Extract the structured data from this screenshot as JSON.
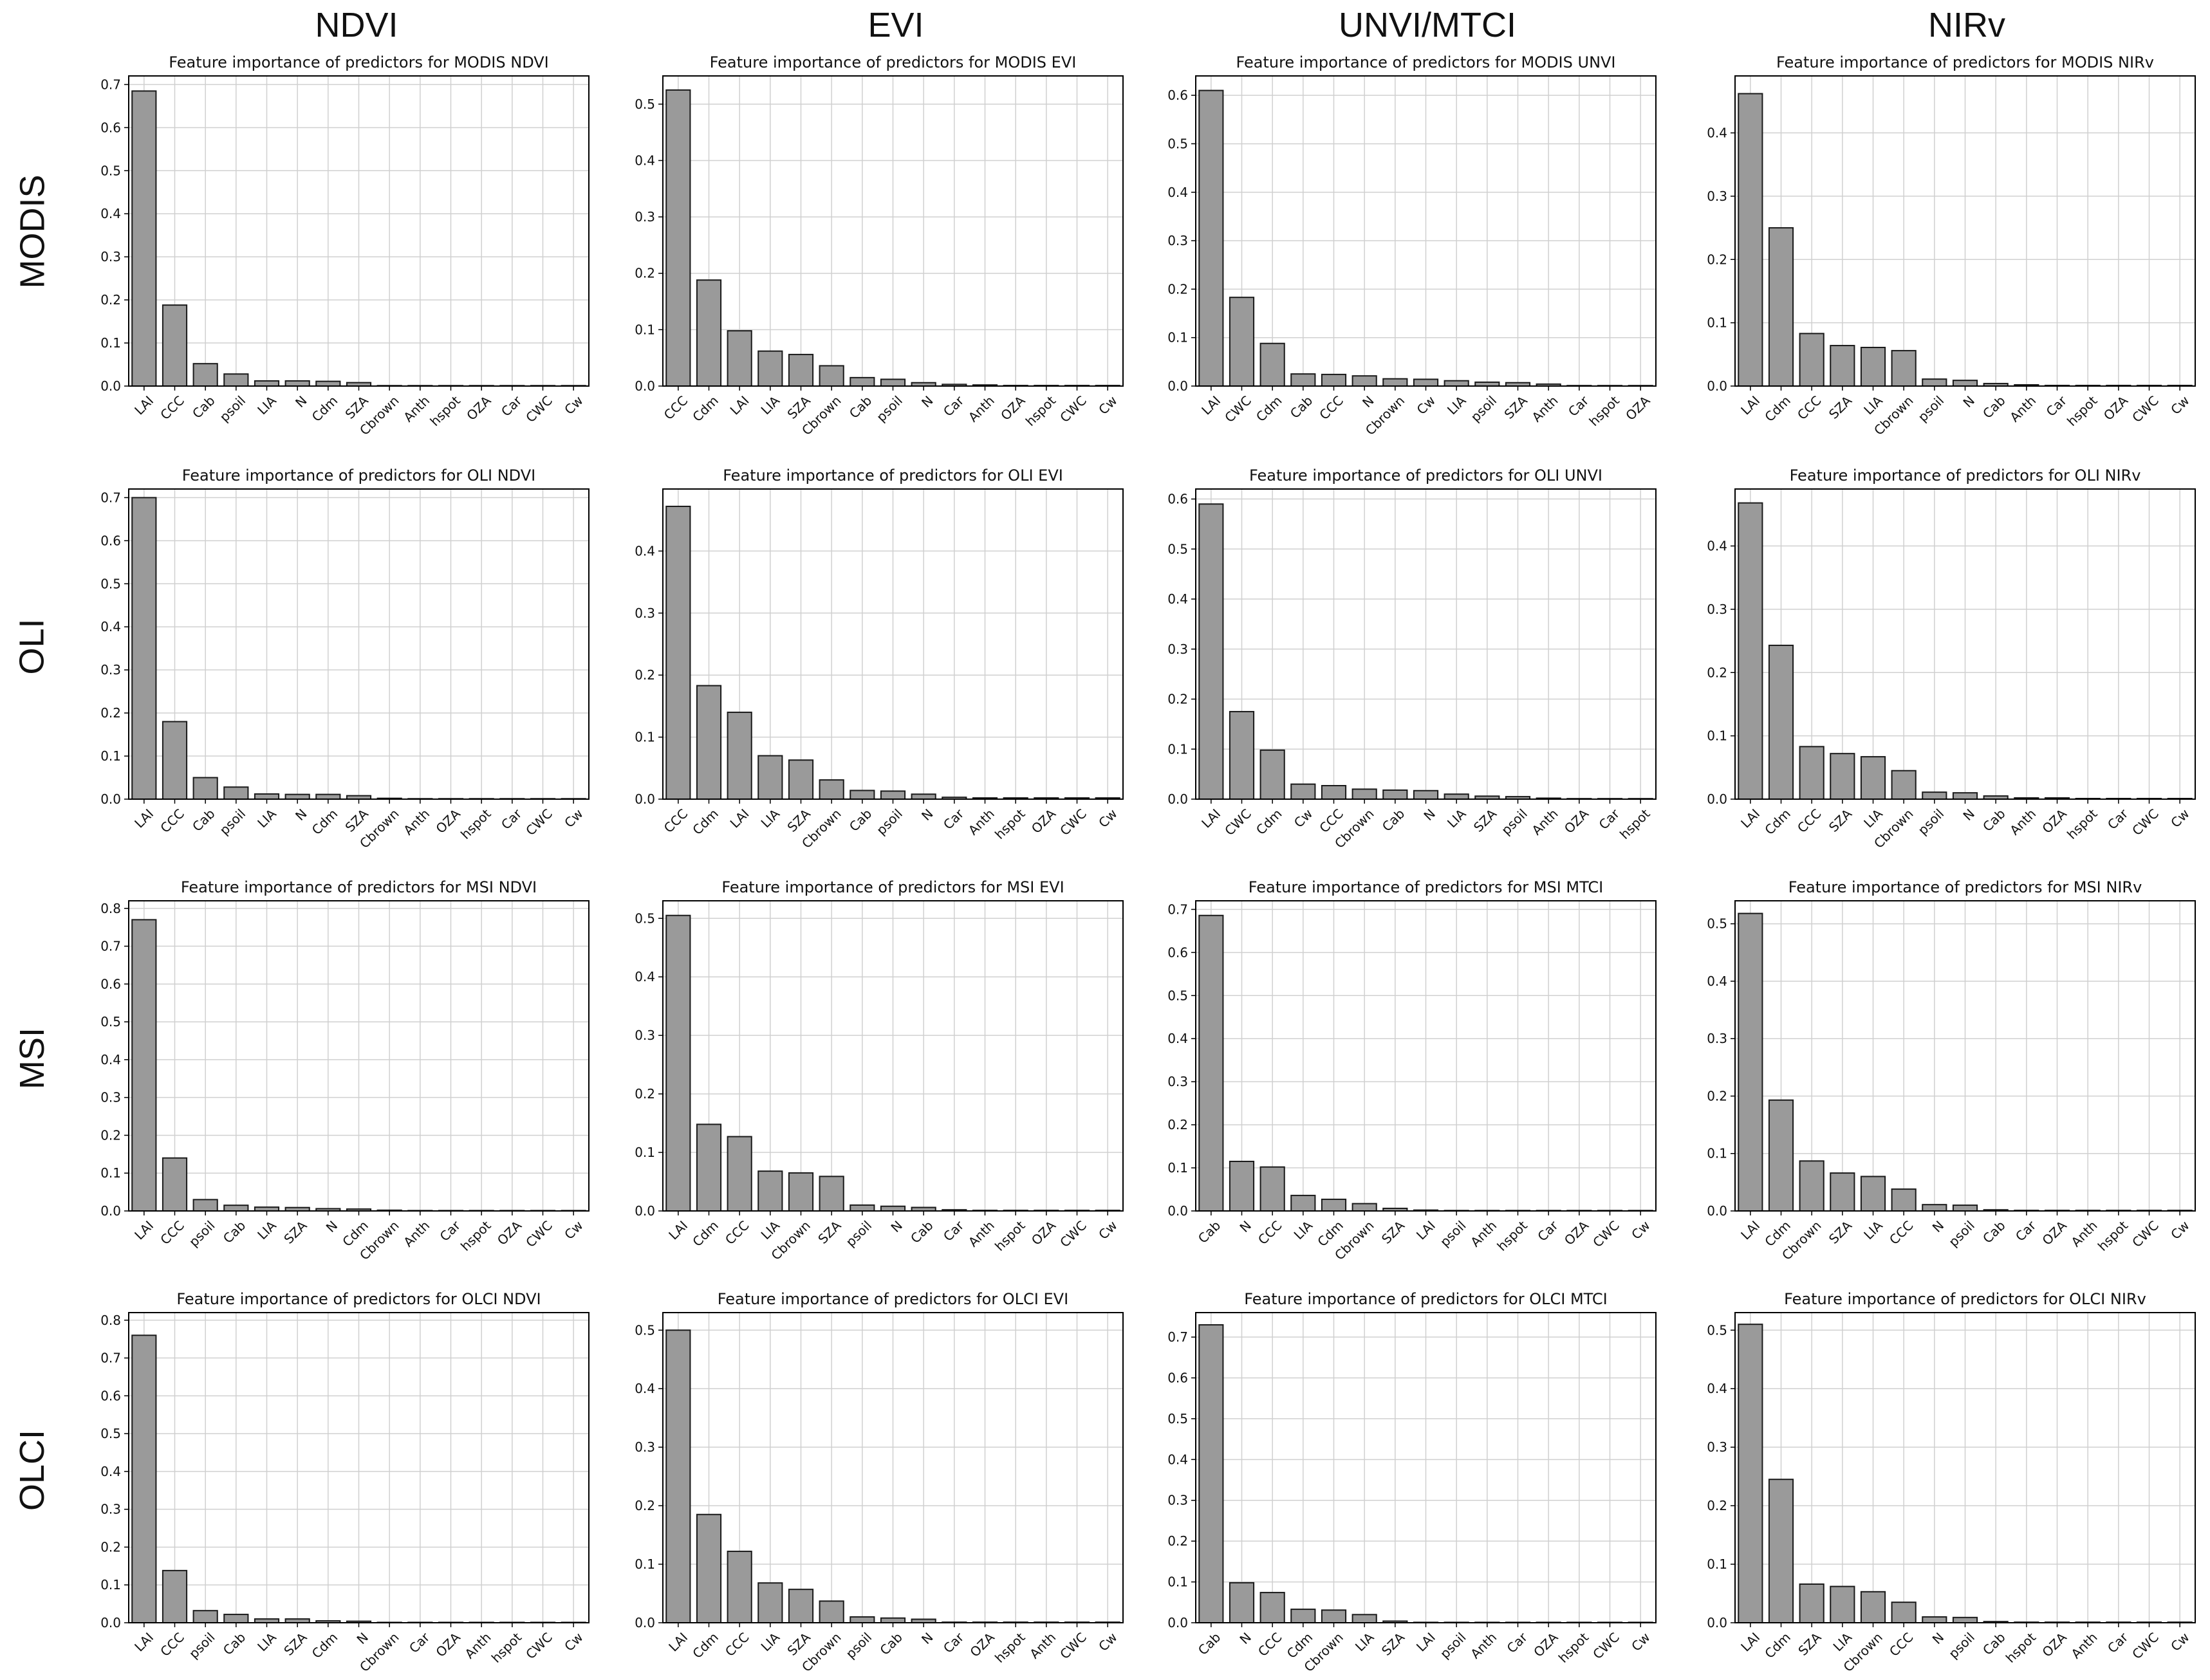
{
  "column_headers": [
    "NDVI",
    "EVI",
    "UNVI/MTCI",
    "NIRv"
  ],
  "row_headers": [
    "MODIS",
    "OLI",
    "MSI",
    "OLCI"
  ],
  "colors": {
    "bar_fill": "#9a9a9a",
    "bar_stroke": "#1a1a1a",
    "grid": "#d0d0d0",
    "axis": "#000000",
    "text": "#111111"
  },
  "chart_data": [
    {
      "type": "bar",
      "title": "Feature importance of predictors for MODIS NDVI",
      "xlabel": "",
      "ylabel": "",
      "ylim": [
        0,
        0.72
      ],
      "yticks": [
        0.0,
        0.1,
        0.2,
        0.3,
        0.4,
        0.5,
        0.6,
        0.7
      ],
      "grid": true,
      "categories": [
        "LAI",
        "CCC",
        "Cab",
        "psoil",
        "LIA",
        "N",
        "Cdm",
        "SZA",
        "Cbrown",
        "Anth",
        "hspot",
        "OZA",
        "Car",
        "CWC",
        "Cw"
      ],
      "values": [
        0.685,
        0.188,
        0.052,
        0.028,
        0.012,
        0.012,
        0.011,
        0.008,
        0.001,
        0.001,
        0.001,
        0.001,
        0.001,
        0.001,
        0.001
      ]
    },
    {
      "type": "bar",
      "title": "Feature importance of predictors for MODIS EVI",
      "xlabel": "",
      "ylabel": "",
      "ylim": [
        0,
        0.55
      ],
      "yticks": [
        0.0,
        0.1,
        0.2,
        0.3,
        0.4,
        0.5
      ],
      "grid": true,
      "categories": [
        "CCC",
        "Cdm",
        "LAI",
        "LIA",
        "SZA",
        "Cbrown",
        "Cab",
        "psoil",
        "N",
        "Car",
        "Anth",
        "OZA",
        "hspot",
        "CWC",
        "Cw"
      ],
      "values": [
        0.525,
        0.188,
        0.098,
        0.062,
        0.056,
        0.036,
        0.015,
        0.012,
        0.006,
        0.003,
        0.002,
        0.001,
        0.001,
        0.001,
        0.001
      ]
    },
    {
      "type": "bar",
      "title": "Feature importance of predictors for MODIS UNVI",
      "xlabel": "",
      "ylabel": "",
      "ylim": [
        0,
        0.64
      ],
      "yticks": [
        0.0,
        0.1,
        0.2,
        0.3,
        0.4,
        0.5,
        0.6
      ],
      "grid": true,
      "categories": [
        "LAI",
        "CWC",
        "Cdm",
        "Cab",
        "CCC",
        "N",
        "Cbrown",
        "Cw",
        "LIA",
        "psoil",
        "SZA",
        "Anth",
        "Car",
        "hspot",
        "OZA"
      ],
      "values": [
        0.61,
        0.183,
        0.088,
        0.025,
        0.024,
        0.021,
        0.015,
        0.014,
        0.011,
        0.008,
        0.007,
        0.004,
        0.001,
        0.001,
        0.001
      ]
    },
    {
      "type": "bar",
      "title": "Feature importance of predictors for MODIS NIRv",
      "xlabel": "",
      "ylabel": "",
      "ylim": [
        0,
        0.49
      ],
      "yticks": [
        0.0,
        0.1,
        0.2,
        0.3,
        0.4
      ],
      "grid": true,
      "categories": [
        "LAI",
        "Cdm",
        "CCC",
        "SZA",
        "LIA",
        "Cbrown",
        "psoil",
        "N",
        "Cab",
        "Anth",
        "Car",
        "hspot",
        "OZA",
        "CWC",
        "Cw"
      ],
      "values": [
        0.462,
        0.25,
        0.083,
        0.064,
        0.061,
        0.056,
        0.011,
        0.009,
        0.004,
        0.002,
        0.001,
        0.001,
        0.001,
        0.001,
        0.001
      ]
    },
    {
      "type": "bar",
      "title": "Feature importance of predictors for OLI NDVI",
      "xlabel": "",
      "ylabel": "",
      "ylim": [
        0,
        0.72
      ],
      "yticks": [
        0.0,
        0.1,
        0.2,
        0.3,
        0.4,
        0.5,
        0.6,
        0.7
      ],
      "grid": true,
      "categories": [
        "LAI",
        "CCC",
        "Cab",
        "psoil",
        "LIA",
        "N",
        "Cdm",
        "SZA",
        "Cbrown",
        "Anth",
        "OZA",
        "hspot",
        "Car",
        "CWC",
        "Cw"
      ],
      "values": [
        0.7,
        0.18,
        0.05,
        0.028,
        0.012,
        0.011,
        0.011,
        0.008,
        0.002,
        0.001,
        0.001,
        0.001,
        0.001,
        0.001,
        0.001
      ]
    },
    {
      "type": "bar",
      "title": "Feature importance of predictors for OLI EVI",
      "xlabel": "",
      "ylabel": "",
      "ylim": [
        0,
        0.5
      ],
      "yticks": [
        0.0,
        0.1,
        0.2,
        0.3,
        0.4
      ],
      "grid": true,
      "categories": [
        "CCC",
        "Cdm",
        "LAI",
        "LIA",
        "SZA",
        "Cbrown",
        "Cab",
        "psoil",
        "N",
        "Car",
        "Anth",
        "hspot",
        "OZA",
        "CWC",
        "Cw"
      ],
      "values": [
        0.472,
        0.183,
        0.14,
        0.07,
        0.063,
        0.031,
        0.014,
        0.013,
        0.008,
        0.003,
        0.002,
        0.002,
        0.002,
        0.002,
        0.002
      ]
    },
    {
      "type": "bar",
      "title": "Feature importance of predictors for OLI UNVI",
      "xlabel": "",
      "ylabel": "",
      "ylim": [
        0,
        0.62
      ],
      "yticks": [
        0.0,
        0.1,
        0.2,
        0.3,
        0.4,
        0.5,
        0.6
      ],
      "grid": true,
      "categories": [
        "LAI",
        "CWC",
        "Cdm",
        "Cw",
        "CCC",
        "Cbrown",
        "Cab",
        "N",
        "LIA",
        "SZA",
        "psoil",
        "Anth",
        "OZA",
        "Car",
        "hspot"
      ],
      "values": [
        0.59,
        0.175,
        0.098,
        0.03,
        0.027,
        0.02,
        0.018,
        0.017,
        0.01,
        0.006,
        0.005,
        0.002,
        0.001,
        0.001,
        0.001
      ]
    },
    {
      "type": "bar",
      "title": "Feature importance of predictors for OLI NIRv",
      "xlabel": "",
      "ylabel": "",
      "ylim": [
        0,
        0.49
      ],
      "yticks": [
        0.0,
        0.1,
        0.2,
        0.3,
        0.4
      ],
      "grid": true,
      "categories": [
        "LAI",
        "Cdm",
        "CCC",
        "SZA",
        "LIA",
        "Cbrown",
        "psoil",
        "N",
        "Cab",
        "Anth",
        "OZA",
        "hspot",
        "Car",
        "CWC",
        "Cw"
      ],
      "values": [
        0.468,
        0.243,
        0.083,
        0.072,
        0.067,
        0.045,
        0.011,
        0.01,
        0.005,
        0.002,
        0.002,
        0.001,
        0.001,
        0.001,
        0.001
      ]
    },
    {
      "type": "bar",
      "title": "Feature importance of predictors for MSI NDVI",
      "xlabel": "",
      "ylabel": "",
      "ylim": [
        0,
        0.82
      ],
      "yticks": [
        0.0,
        0.1,
        0.2,
        0.3,
        0.4,
        0.5,
        0.6,
        0.7,
        0.8
      ],
      "grid": true,
      "categories": [
        "LAI",
        "CCC",
        "psoil",
        "Cab",
        "LIA",
        "SZA",
        "N",
        "Cdm",
        "Cbrown",
        "Anth",
        "Car",
        "hspot",
        "OZA",
        "CWC",
        "Cw"
      ],
      "values": [
        0.77,
        0.14,
        0.03,
        0.015,
        0.01,
        0.009,
        0.006,
        0.005,
        0.002,
        0.001,
        0.001,
        0.001,
        0.001,
        0.001,
        0.001
      ]
    },
    {
      "type": "bar",
      "title": "Feature importance of predictors for MSI EVI",
      "xlabel": "",
      "ylabel": "",
      "ylim": [
        0,
        0.53
      ],
      "yticks": [
        0.0,
        0.1,
        0.2,
        0.3,
        0.4,
        0.5
      ],
      "grid": true,
      "categories": [
        "LAI",
        "Cdm",
        "CCC",
        "LIA",
        "Cbrown",
        "SZA",
        "psoil",
        "N",
        "Cab",
        "Car",
        "Anth",
        "hspot",
        "OZA",
        "CWC",
        "Cw"
      ],
      "values": [
        0.505,
        0.148,
        0.127,
        0.068,
        0.065,
        0.059,
        0.01,
        0.008,
        0.006,
        0.002,
        0.001,
        0.001,
        0.001,
        0.001,
        0.001
      ]
    },
    {
      "type": "bar",
      "title": "Feature importance of predictors for MSI MTCI",
      "xlabel": "",
      "ylabel": "",
      "ylim": [
        0,
        0.72
      ],
      "yticks": [
        0.0,
        0.1,
        0.2,
        0.3,
        0.4,
        0.5,
        0.6,
        0.7
      ],
      "grid": true,
      "categories": [
        "Cab",
        "N",
        "CCC",
        "LIA",
        "Cdm",
        "Cbrown",
        "SZA",
        "LAI",
        "psoil",
        "Anth",
        "hspot",
        "Car",
        "OZA",
        "CWC",
        "Cw"
      ],
      "values": [
        0.686,
        0.115,
        0.102,
        0.036,
        0.027,
        0.017,
        0.006,
        0.002,
        0.001,
        0.001,
        0.001,
        0.001,
        0.001,
        0.001,
        0.001
      ]
    },
    {
      "type": "bar",
      "title": "Feature importance of predictors for MSI NIRv",
      "xlabel": "",
      "ylabel": "",
      "ylim": [
        0,
        0.54
      ],
      "yticks": [
        0.0,
        0.1,
        0.2,
        0.3,
        0.4,
        0.5
      ],
      "grid": true,
      "categories": [
        "LAI",
        "Cdm",
        "Cbrown",
        "SZA",
        "LIA",
        "CCC",
        "N",
        "psoil",
        "Cab",
        "Car",
        "OZA",
        "Anth",
        "hspot",
        "CWC",
        "Cw"
      ],
      "values": [
        0.518,
        0.193,
        0.087,
        0.066,
        0.06,
        0.038,
        0.011,
        0.01,
        0.002,
        0.001,
        0.001,
        0.001,
        0.001,
        0.001,
        0.001
      ]
    },
    {
      "type": "bar",
      "title": "Feature importance of predictors for OLCI NDVI",
      "xlabel": "",
      "ylabel": "",
      "ylim": [
        0,
        0.82
      ],
      "yticks": [
        0.0,
        0.1,
        0.2,
        0.3,
        0.4,
        0.5,
        0.6,
        0.7,
        0.8
      ],
      "grid": true,
      "categories": [
        "LAI",
        "CCC",
        "psoil",
        "Cab",
        "LIA",
        "SZA",
        "Cdm",
        "N",
        "Cbrown",
        "Car",
        "OZA",
        "Anth",
        "hspot",
        "CWC",
        "Cw"
      ],
      "values": [
        0.76,
        0.138,
        0.032,
        0.022,
        0.01,
        0.01,
        0.005,
        0.004,
        0.001,
        0.001,
        0.001,
        0.001,
        0.001,
        0.001,
        0.001
      ]
    },
    {
      "type": "bar",
      "title": "Feature importance of predictors for OLCI EVI",
      "xlabel": "",
      "ylabel": "",
      "ylim": [
        0,
        0.53
      ],
      "yticks": [
        0.0,
        0.1,
        0.2,
        0.3,
        0.4,
        0.5
      ],
      "grid": true,
      "categories": [
        "LAI",
        "Cdm",
        "CCC",
        "LIA",
        "SZA",
        "Cbrown",
        "psoil",
        "Cab",
        "N",
        "Car",
        "OZA",
        "hspot",
        "Anth",
        "CWC",
        "Cw"
      ],
      "values": [
        0.5,
        0.185,
        0.122,
        0.068,
        0.057,
        0.037,
        0.01,
        0.008,
        0.006,
        0.001,
        0.001,
        0.001,
        0.001,
        0.001,
        0.001
      ]
    },
    {
      "type": "bar",
      "title": "Feature importance of predictors for OLCI MTCI",
      "xlabel": "",
      "ylabel": "",
      "ylim": [
        0,
        0.76
      ],
      "yticks": [
        0.0,
        0.1,
        0.2,
        0.3,
        0.4,
        0.5,
        0.6,
        0.7
      ],
      "grid": true,
      "categories": [
        "Cab",
        "N",
        "CCC",
        "Cdm",
        "Cbrown",
        "LIA",
        "SZA",
        "LAI",
        "psoil",
        "Anth",
        "Car",
        "OZA",
        "hspot",
        "CWC",
        "Cw"
      ],
      "values": [
        0.73,
        0.098,
        0.074,
        0.033,
        0.031,
        0.02,
        0.004,
        0.001,
        0.001,
        0.001,
        0.001,
        0.001,
        0.001,
        0.001,
        0.001
      ]
    },
    {
      "type": "bar",
      "title": "Feature importance of predictors for OLCI NIRv",
      "xlabel": "",
      "ylabel": "",
      "ylim": [
        0,
        0.53
      ],
      "yticks": [
        0.0,
        0.1,
        0.2,
        0.3,
        0.4,
        0.5
      ],
      "grid": true,
      "categories": [
        "LAI",
        "Cdm",
        "SZA",
        "LIA",
        "Cbrown",
        "CCC",
        "N",
        "psoil",
        "Cab",
        "hspot",
        "OZA",
        "Anth",
        "Car",
        "CWC",
        "Cw"
      ],
      "values": [
        0.51,
        0.245,
        0.066,
        0.062,
        0.053,
        0.035,
        0.01,
        0.009,
        0.002,
        0.001,
        0.001,
        0.001,
        0.001,
        0.001,
        0.001
      ]
    }
  ]
}
